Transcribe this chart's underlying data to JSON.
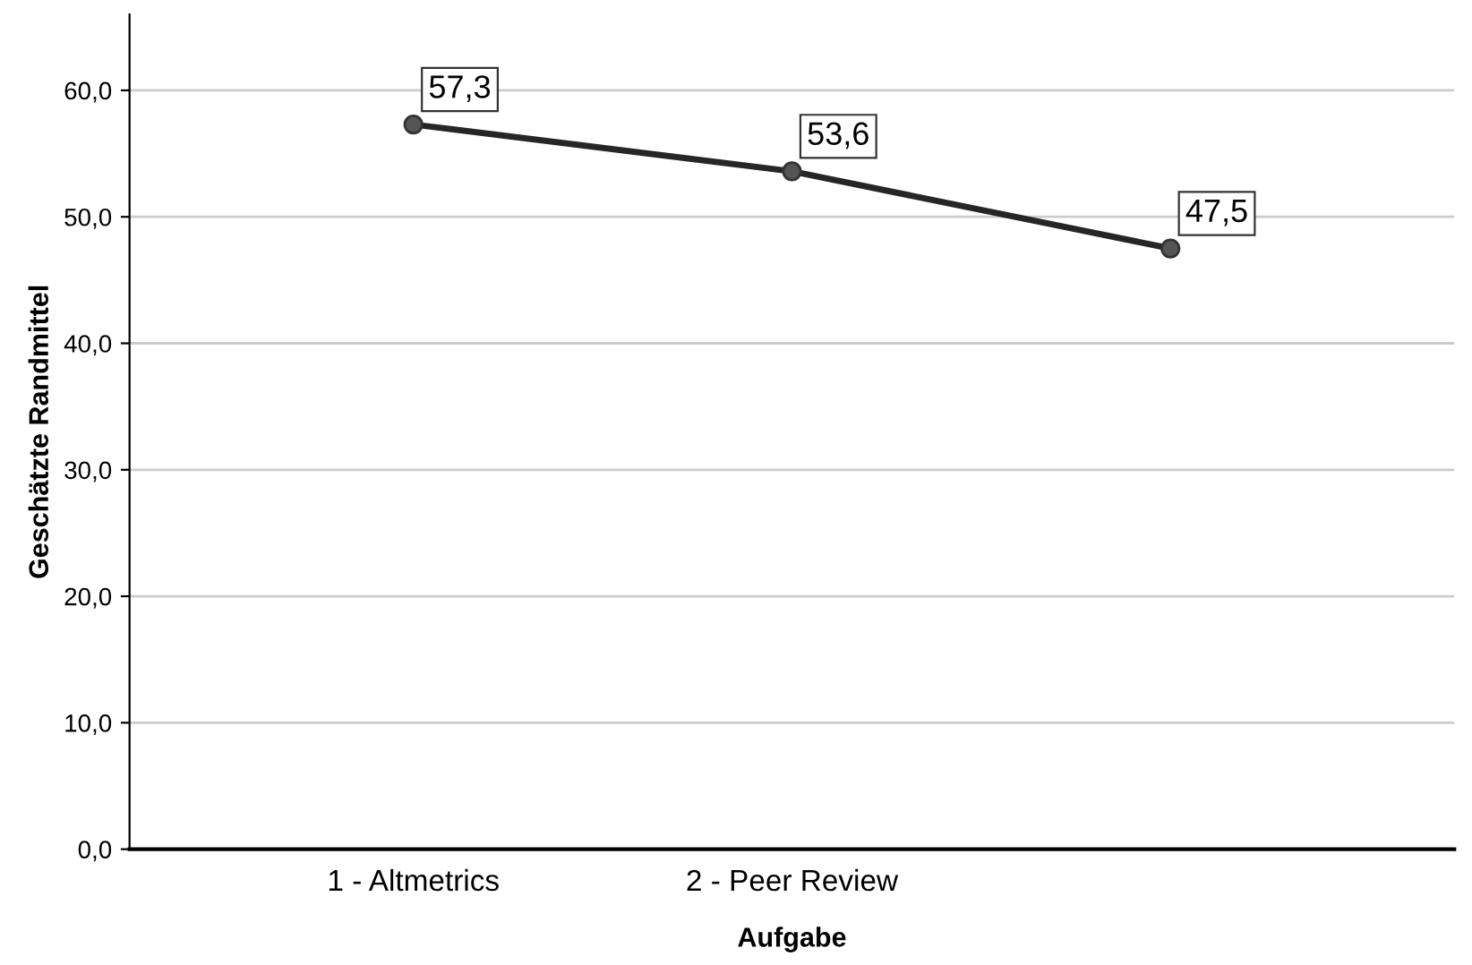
{
  "chart_data": {
    "type": "line",
    "xlabel": "Aufgabe",
    "ylabel": "Geschätzte Randmittel",
    "categories": [
      "1 - Altmetrics",
      "2 - Peer Review",
      null
    ],
    "series": [
      {
        "color": "#262626",
        "values": [
          57.3,
          53.6,
          47.5
        ],
        "value_labels": [
          "57,3",
          "53,6",
          "47,5"
        ]
      }
    ],
    "ylim": [
      0,
      66
    ],
    "yticks": [
      {
        "value": 0,
        "label": "0,0"
      },
      {
        "value": 10,
        "label": "10,0"
      },
      {
        "value": 20,
        "label": "20,0"
      },
      {
        "value": 30,
        "label": "30,0"
      },
      {
        "value": 40,
        "label": "40,0"
      },
      {
        "value": 50,
        "label": "50,0"
      },
      {
        "value": 60,
        "label": "60,0"
      }
    ],
    "grid": "y",
    "marker": "circle",
    "line_style": "solid",
    "legend": false
  }
}
